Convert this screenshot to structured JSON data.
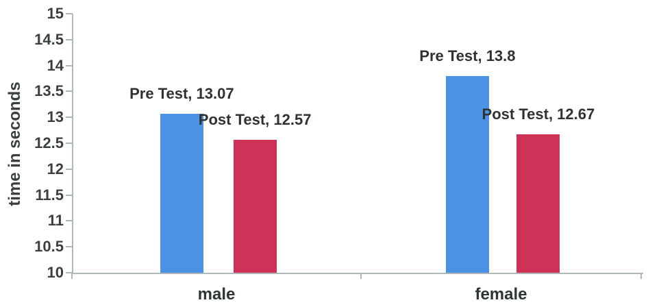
{
  "chart_data": {
    "type": "bar",
    "title": "",
    "categories": [
      "male",
      "female"
    ],
    "series": [
      {
        "name": "Pre Test",
        "color": "#4b92e4",
        "values": [
          13.07,
          13.8
        ],
        "labels": [
          "Pre Test, 13.07",
          "Pre Test, 13.8"
        ]
      },
      {
        "name": "Post Test",
        "color": "#d03157",
        "values": [
          12.57,
          12.67
        ],
        "labels": [
          "Post Test, 12.57",
          "Post Test, 12.67"
        ]
      }
    ],
    "xlabel": "",
    "ylabel": "time in seconds",
    "ylim": [
      10,
      15
    ],
    "ytick_step": 0.5,
    "yticks": [
      "15",
      "14.5",
      "14",
      "13.5",
      "13",
      "12.5",
      "12",
      "11.5",
      "11",
      "10.5",
      "10"
    ],
    "grid": false,
    "legend_position": "none",
    "data_labels": true,
    "axis_color": "#aeb8b8",
    "text_color": "#3a3f40"
  }
}
